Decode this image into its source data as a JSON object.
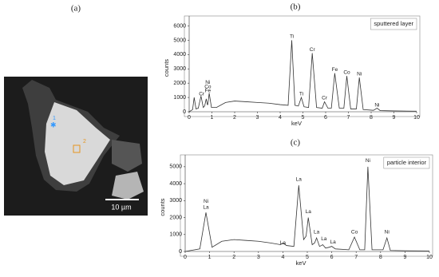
{
  "micrograph": {
    "label": "(a)",
    "markers": [
      "1",
      "2"
    ],
    "scale_bar": "10 µm"
  },
  "chart_data": [
    {
      "type": "line",
      "label": "(b)",
      "inset_label": "sputtered layer",
      "xlabel": "keV",
      "ylabel": "counts",
      "xlim": [
        0,
        10
      ],
      "xticks": [
        0,
        1,
        2,
        3,
        4,
        5,
        6,
        7,
        8,
        9,
        10
      ],
      "ylim": [
        0,
        6700
      ],
      "yticks": [
        0,
        1000,
        2000,
        3000,
        4000,
        5000,
        6000
      ],
      "color": "#333333",
      "x": [
        0,
        0.15,
        0.22,
        0.3,
        0.4,
        0.52,
        0.62,
        0.68,
        0.75,
        0.8,
        0.82,
        0.88,
        0.98,
        1.2,
        1.6,
        2.0,
        2.5,
        3.0,
        3.5,
        4.0,
        4.35,
        4.51,
        4.65,
        4.8,
        4.93,
        5.05,
        5.25,
        5.41,
        5.6,
        5.85,
        5.95,
        6.1,
        6.25,
        6.4,
        6.6,
        6.8,
        6.93,
        7.1,
        7.35,
        7.48,
        7.65,
        8.1,
        8.26,
        8.4,
        9,
        10
      ],
      "values": [
        0,
        150,
        1000,
        200,
        250,
        1100,
        300,
        400,
        900,
        500,
        500,
        1300,
        300,
        300,
        650,
        750,
        700,
        650,
        600,
        500,
        450,
        5000,
        450,
        400,
        1000,
        350,
        300,
        4100,
        300,
        250,
        700,
        250,
        250,
        2700,
        250,
        250,
        2500,
        200,
        200,
        2400,
        150,
        100,
        250,
        80,
        60,
        40
      ],
      "annotations": [
        {
          "text": "Ni",
          "x": 0.82,
          "y": 2050
        },
        {
          "text": "Co",
          "x": 0.82,
          "y": 1750
        },
        {
          "text": "Fe",
          "x": 0.82,
          "y": 1450
        },
        {
          "text": "Cr",
          "x": 0.55,
          "y": 1250
        },
        {
          "text": "Ti",
          "x": 4.51,
          "y": 5250
        },
        {
          "text": "Ti",
          "x": 4.93,
          "y": 1250
        },
        {
          "text": "Cr",
          "x": 5.41,
          "y": 4350
        },
        {
          "text": "Cr",
          "x": 5.95,
          "y": 950
        },
        {
          "text": "Fe",
          "x": 6.4,
          "y": 2950
        },
        {
          "text": "Co",
          "x": 6.93,
          "y": 2750
        },
        {
          "text": "Ni",
          "x": 7.48,
          "y": 2650
        },
        {
          "text": "Ni",
          "x": 8.26,
          "y": 450
        }
      ]
    },
    {
      "type": "line",
      "label": "(c)",
      "inset_label": "particle interior",
      "xlabel": "keV",
      "ylabel": "counts",
      "xlim": [
        0,
        10
      ],
      "xticks": [
        0,
        1,
        2,
        3,
        4,
        5,
        6,
        7,
        8,
        9,
        10
      ],
      "ylim": [
        0,
        5700
      ],
      "yticks": [
        0,
        1000,
        2000,
        3000,
        4000,
        5000
      ],
      "color": "#333333",
      "x": [
        0,
        0.6,
        0.85,
        1.1,
        1.5,
        2,
        2.5,
        3,
        3.5,
        3.9,
        4.0,
        4.15,
        4.45,
        4.65,
        4.85,
        4.95,
        5.04,
        5.2,
        5.3,
        5.38,
        5.5,
        5.58,
        5.63,
        5.75,
        5.9,
        6.0,
        6.15,
        6.7,
        6.93,
        7.15,
        7.35,
        7.48,
        7.65,
        8.1,
        8.26,
        8.4,
        9,
        10
      ],
      "values": [
        0,
        150,
        2300,
        250,
        600,
        700,
        650,
        600,
        500,
        400,
        500,
        350,
        300,
        3900,
        700,
        900,
        2000,
        400,
        500,
        800,
        300,
        350,
        400,
        200,
        250,
        300,
        150,
        100,
        850,
        100,
        100,
        5000,
        100,
        100,
        800,
        60,
        40,
        30
      ],
      "annotations": [
        {
          "text": "Ni",
          "x": 0.85,
          "y": 2950
        },
        {
          "text": "La",
          "x": 0.85,
          "y": 2600
        },
        {
          "text": "La",
          "x": 4.0,
          "y": 500
        },
        {
          "text": "La",
          "x": 4.65,
          "y": 4250
        },
        {
          "text": "La",
          "x": 5.04,
          "y": 2350
        },
        {
          "text": "La",
          "x": 5.38,
          "y": 1150
        },
        {
          "text": "La",
          "x": 5.68,
          "y": 750
        },
        {
          "text": "La",
          "x": 6.05,
          "y": 550
        },
        {
          "text": "Co",
          "x": 6.93,
          "y": 1150
        },
        {
          "text": "Ni",
          "x": 7.48,
          "y": 5350
        },
        {
          "text": "Ni",
          "x": 8.26,
          "y": 1150
        }
      ]
    }
  ]
}
